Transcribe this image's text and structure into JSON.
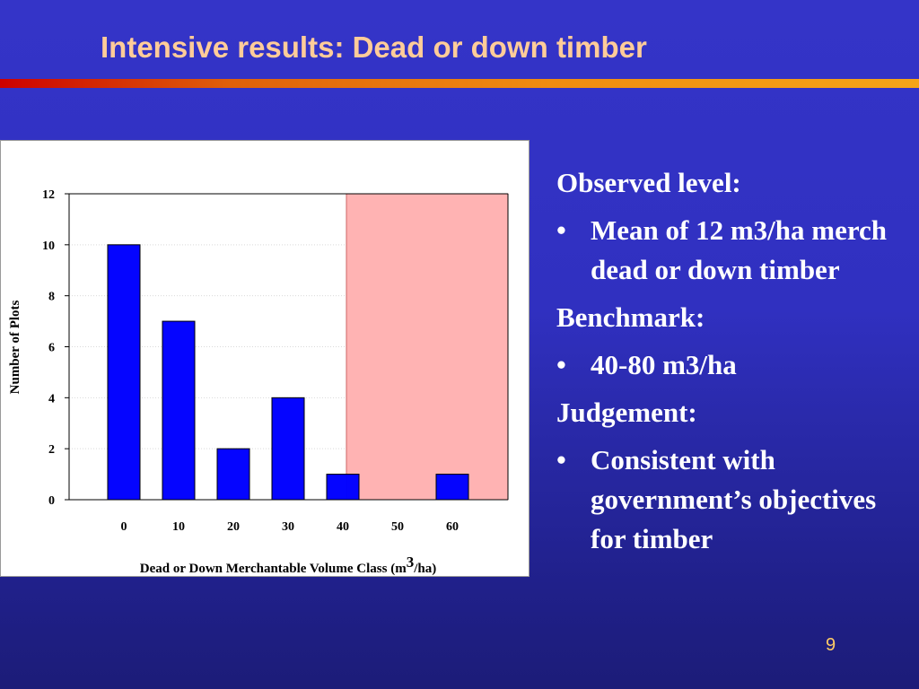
{
  "slide": {
    "title": "Intensive results: Dead or down timber",
    "page_number": "9",
    "accent_colors": {
      "title": "#ffcc99",
      "rule_start": "#cc0000",
      "rule_end": "#f5a418",
      "background": "#3030c0"
    }
  },
  "chart_data": {
    "type": "bar",
    "categories": [
      "0",
      "10",
      "20",
      "30",
      "40",
      "50",
      "60"
    ],
    "values": [
      10,
      7,
      2,
      4,
      1,
      0,
      1
    ],
    "xlabel_text": "Dead or Down Merchantable Volume Class (m",
    "xlabel_superscript": "3",
    "xlabel_suffix": "/ha)",
    "ylabel": "Number of Plots",
    "ylim": [
      0,
      12
    ],
    "yticks": [
      "0",
      "2",
      "4",
      "6",
      "8",
      "10",
      "12"
    ],
    "bar_color": "#0000ff",
    "highlight_region": {
      "x_from": 40,
      "x_to": 80,
      "color": "#ffb3b3"
    },
    "grid": true,
    "legend": "none"
  },
  "bullets": {
    "observed_heading": "Observed level:",
    "observed_item": "Mean of 12 m3/ha merch dead or down timber",
    "benchmark_heading": "Benchmark:",
    "benchmark_item": "40-80 m3/ha",
    "judgement_heading": "Judgement:",
    "judgement_item": "Consistent with government’s objectives for timber",
    "bullet_glyph": "•"
  }
}
